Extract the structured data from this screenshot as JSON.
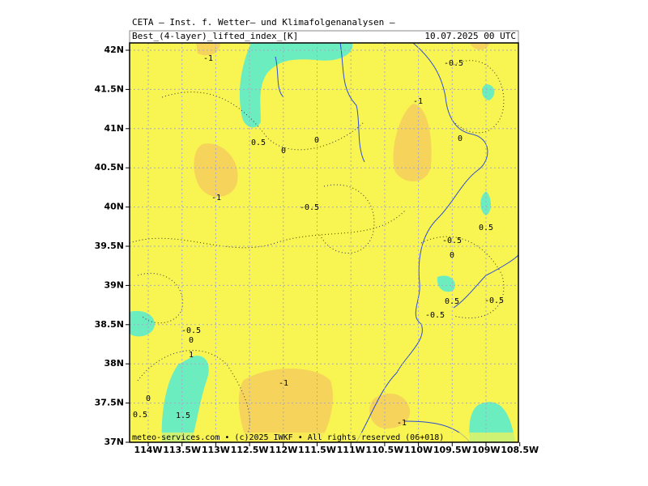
{
  "header": {
    "title": "CETA — Inst. f. Wetter— und Klimafolgenanalysen —",
    "field": "Best_(4-layer)_lifted_index_[K]",
    "time": "10.07.2025 00 UTC"
  },
  "axes": {
    "y_labels": [
      "42N",
      "41.5N",
      "41N",
      "40.5N",
      "40N",
      "39.5N",
      "39N",
      "38.5N",
      "38N",
      "37.5N",
      "37N"
    ],
    "x_labels": [
      "114W",
      "113.5W",
      "113W",
      "112.5W",
      "112W",
      "111.5W",
      "111W",
      "110.5W",
      "110W",
      "109.5W",
      "109W",
      "108.5W"
    ]
  },
  "contour_labels": [
    "-1",
    "-0.5",
    "-1",
    "0.5",
    "0",
    "0",
    "0",
    "-1",
    "-0.5",
    "0.5",
    "-0.5",
    "0",
    "0.5",
    "-0.5",
    "-0.5",
    "-0.5",
    "0",
    "1",
    "-1",
    "0",
    "0.5",
    "1.5",
    "-1"
  ],
  "footer": "meteo-services.com • (c)2025 IWKF • All rights reserved (06+018)"
}
